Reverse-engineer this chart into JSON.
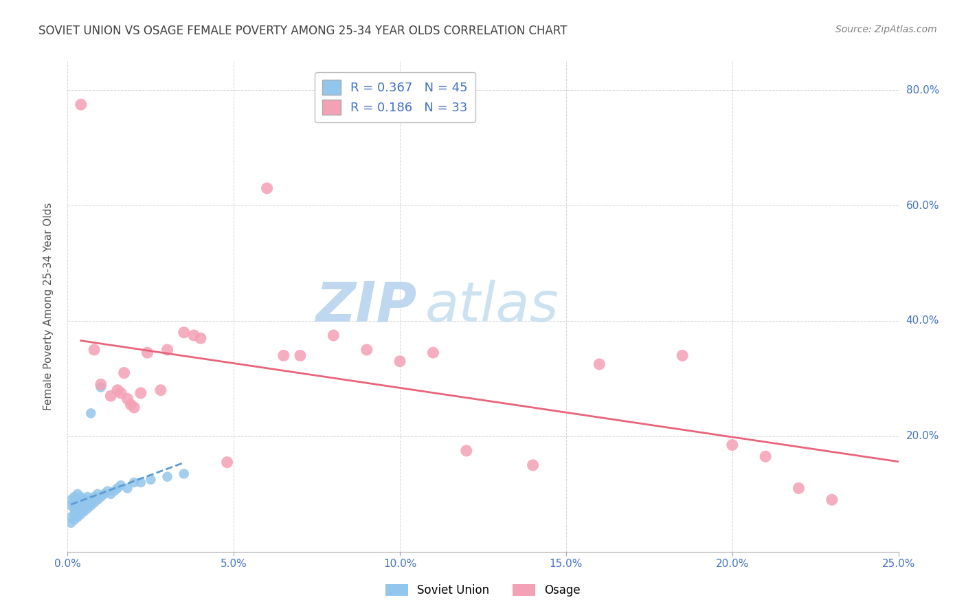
{
  "title": "SOVIET UNION VS OSAGE FEMALE POVERTY AMONG 25-34 YEAR OLDS CORRELATION CHART",
  "source": "Source: ZipAtlas.com",
  "ylabel_label": "Female Poverty Among 25-34 Year Olds",
  "xlim": [
    0.0,
    0.25
  ],
  "ylim": [
    0.0,
    0.85
  ],
  "xticks": [
    0.0,
    0.05,
    0.1,
    0.15,
    0.2,
    0.25
  ],
  "yticks": [
    0.0,
    0.2,
    0.4,
    0.6,
    0.8
  ],
  "xticklabels": [
    "0.0%",
    "5.0%",
    "10.0%",
    "15.0%",
    "20.0%",
    "25.0%"
  ],
  "yticklabels": [
    "",
    "20.0%",
    "40.0%",
    "60.0%",
    "80.0%"
  ],
  "soviet_color": "#93C6EC",
  "osage_color": "#F4A0B5",
  "trendline_soviet_color": "#5B9BD5",
  "trendline_osage_color": "#E8647A",
  "legend_R_soviet": "0.367",
  "legend_N_soviet": "45",
  "legend_R_osage": "0.186",
  "legend_N_osage": "33",
  "watermark_zip": "ZIP",
  "watermark_atlas": "atlas",
  "watermark_color": "#D8EAF8",
  "tick_color": "#4472C4",
  "title_color": "#404040",
  "source_color": "#808080",
  "soviet_x": [
    0.001,
    0.001,
    0.001,
    0.001,
    0.002,
    0.002,
    0.002,
    0.002,
    0.002,
    0.003,
    0.003,
    0.003,
    0.003,
    0.003,
    0.004,
    0.004,
    0.004,
    0.004,
    0.005,
    0.005,
    0.005,
    0.006,
    0.006,
    0.006,
    0.007,
    0.007,
    0.007,
    0.008,
    0.008,
    0.009,
    0.009,
    0.01,
    0.01,
    0.011,
    0.012,
    0.013,
    0.014,
    0.015,
    0.016,
    0.018,
    0.02,
    0.022,
    0.025,
    0.03,
    0.035
  ],
  "soviet_y": [
    0.05,
    0.06,
    0.08,
    0.09,
    0.055,
    0.065,
    0.075,
    0.085,
    0.095,
    0.06,
    0.07,
    0.08,
    0.09,
    0.1,
    0.065,
    0.075,
    0.085,
    0.095,
    0.07,
    0.08,
    0.09,
    0.075,
    0.085,
    0.095,
    0.08,
    0.09,
    0.24,
    0.085,
    0.095,
    0.09,
    0.1,
    0.095,
    0.285,
    0.1,
    0.105,
    0.1,
    0.105,
    0.11,
    0.115,
    0.11,
    0.12,
    0.12,
    0.125,
    0.13,
    0.135
  ],
  "osage_x": [
    0.004,
    0.008,
    0.01,
    0.013,
    0.015,
    0.016,
    0.017,
    0.018,
    0.019,
    0.02,
    0.022,
    0.024,
    0.028,
    0.03,
    0.035,
    0.038,
    0.04,
    0.048,
    0.06,
    0.065,
    0.07,
    0.08,
    0.09,
    0.1,
    0.11,
    0.12,
    0.14,
    0.16,
    0.185,
    0.2,
    0.21,
    0.22,
    0.23
  ],
  "osage_y": [
    0.775,
    0.35,
    0.29,
    0.27,
    0.28,
    0.275,
    0.31,
    0.265,
    0.255,
    0.25,
    0.275,
    0.345,
    0.28,
    0.35,
    0.38,
    0.375,
    0.37,
    0.155,
    0.63,
    0.34,
    0.34,
    0.375,
    0.35,
    0.33,
    0.345,
    0.175,
    0.15,
    0.325,
    0.34,
    0.185,
    0.165,
    0.11,
    0.09
  ]
}
